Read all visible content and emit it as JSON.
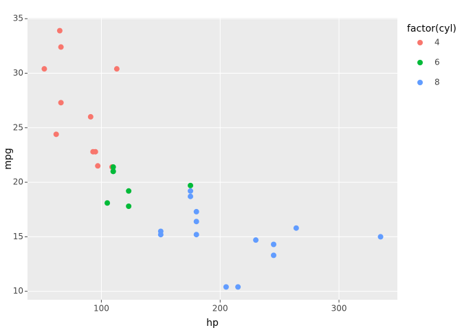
{
  "chart_data": {
    "type": "scatter",
    "x_label": "hp",
    "y_label": "mpg",
    "legend_title": "factor(cyl)",
    "xlim": [
      37.85,
      349.15
    ],
    "ylim": [
      9.225,
      35.075
    ],
    "xticks": [
      100,
      200,
      300
    ],
    "yticks": [
      10,
      15,
      20,
      25,
      30,
      35
    ],
    "grid": true,
    "series": [
      {
        "name": "4",
        "color": "#F8766D",
        "x": [
          93,
          62,
          95,
          66,
          52,
          65,
          97,
          66,
          91,
          113,
          109
        ],
        "values": [
          22.8,
          24.4,
          22.8,
          32.4,
          30.4,
          33.9,
          21.5,
          27.3,
          26.0,
          30.4,
          21.4
        ]
      },
      {
        "name": "6",
        "color": "#00BA38",
        "x": [
          110,
          110,
          110,
          105,
          123,
          123,
          175
        ],
        "values": [
          21.0,
          21.0,
          21.4,
          18.1,
          19.2,
          17.8,
          19.7
        ]
      },
      {
        "name": "8",
        "color": "#619CFF",
        "x": [
          175,
          245,
          180,
          180,
          180,
          205,
          215,
          230,
          150,
          150,
          245,
          175,
          264,
          335
        ],
        "values": [
          18.7,
          14.3,
          16.4,
          17.3,
          15.2,
          10.4,
          10.4,
          14.7,
          15.5,
          15.2,
          13.3,
          19.2,
          15.8,
          15.0
        ]
      }
    ]
  }
}
